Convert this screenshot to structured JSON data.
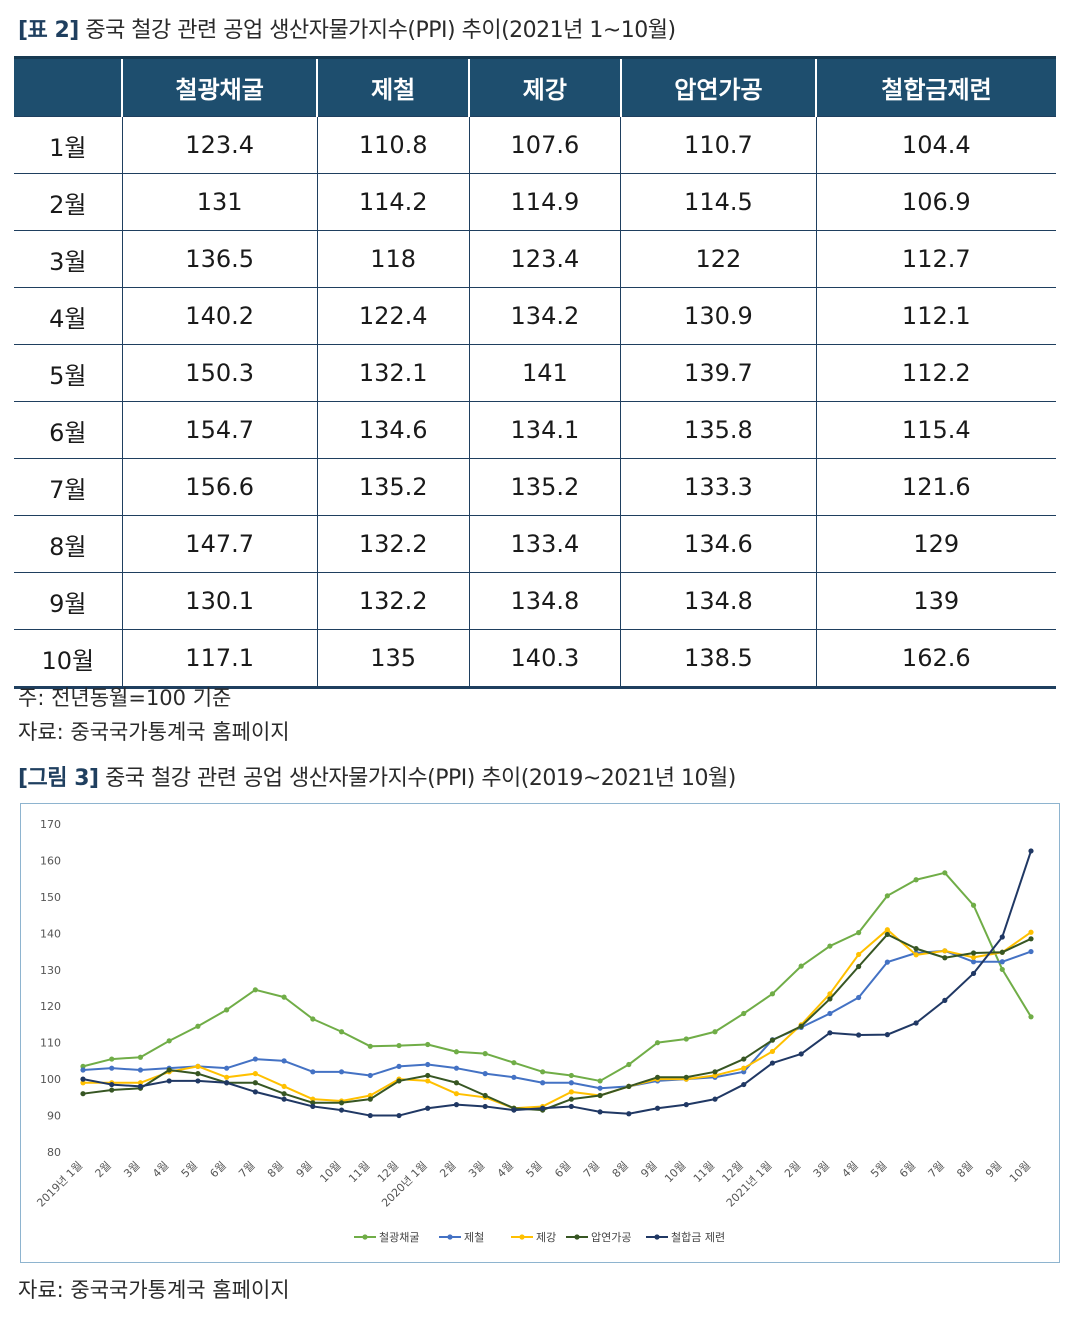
{
  "table": {
    "caption_tag": "[표 2]",
    "caption_text": "중국 철강 관련 공업 생산자물가지수(PPI) 추이(2021년 1~10월)",
    "headers": [
      "",
      "철광채굴",
      "제철",
      "제강",
      "압연가공",
      "철합금제련"
    ],
    "rows": [
      [
        "1월",
        "123.4",
        "110.8",
        "107.6",
        "110.7",
        "104.4"
      ],
      [
        "2월",
        "131",
        "114.2",
        "114.9",
        "114.5",
        "106.9"
      ],
      [
        "3월",
        "136.5",
        "118",
        "123.4",
        "122",
        "112.7"
      ],
      [
        "4월",
        "140.2",
        "122.4",
        "134.2",
        "130.9",
        "112.1"
      ],
      [
        "5월",
        "150.3",
        "132.1",
        "141",
        "139.7",
        "112.2"
      ],
      [
        "6월",
        "154.7",
        "134.6",
        "134.1",
        "135.8",
        "115.4"
      ],
      [
        "7월",
        "156.6",
        "135.2",
        "135.2",
        "133.3",
        "121.6"
      ],
      [
        "8월",
        "147.7",
        "132.2",
        "133.4",
        "134.6",
        "129"
      ],
      [
        "9월",
        "130.1",
        "132.2",
        "134.8",
        "134.8",
        "139"
      ],
      [
        "10월",
        "117.1",
        "135",
        "140.3",
        "138.5",
        "162.6"
      ]
    ],
    "note": "주: 전년동월=100 기준",
    "source": "자료: 중국국가통계국 홈페이지"
  },
  "figure": {
    "caption_tag": "[그림 3]",
    "caption_text": "중국 철강 관련 공업 생산자물가지수(PPI) 추이(2019~2021년 10월)",
    "source": "자료: 중국국가통계국 홈페이지"
  },
  "chart_data": {
    "type": "line",
    "title": "",
    "xlabel": "",
    "ylabel": "",
    "ylim": [
      80,
      170
    ],
    "yticks": [
      80,
      90,
      100,
      110,
      120,
      130,
      140,
      150,
      160,
      170
    ],
    "grid": false,
    "legend_position": "bottom",
    "categories": [
      "2019년 1월",
      "2월",
      "3월",
      "4월",
      "5월",
      "6월",
      "7월",
      "8월",
      "9월",
      "10월",
      "11월",
      "12월",
      "2020년 1월",
      "2월",
      "3월",
      "4월",
      "5월",
      "6월",
      "7월",
      "8월",
      "9월",
      "10월",
      "11월",
      "12월",
      "2021년 1월",
      "2월",
      "3월",
      "4월",
      "5월",
      "6월",
      "7월",
      "8월",
      "9월",
      "10월"
    ],
    "series": [
      {
        "name": "철광채굴",
        "color": "#70ad47",
        "values": [
          103.5,
          105.5,
          106,
          110.5,
          114.5,
          119,
          124.5,
          122.5,
          116.5,
          113,
          109,
          109.2,
          109.5,
          107.5,
          107,
          104.5,
          102,
          101,
          99.5,
          104,
          110,
          111,
          113,
          118,
          123.4,
          131,
          136.5,
          140.2,
          150.3,
          154.7,
          156.6,
          147.7,
          130.1,
          117.1
        ]
      },
      {
        "name": "제철",
        "color": "#4472c4",
        "values": [
          102.5,
          103,
          102.5,
          103,
          103.5,
          103,
          105.5,
          105,
          102,
          102,
          101,
          103.5,
          104,
          103,
          101.5,
          100.5,
          99,
          99,
          97.5,
          98,
          99.5,
          100,
          100.5,
          102,
          110.8,
          114.2,
          118,
          122.4,
          132.1,
          134.6,
          135.2,
          132.2,
          132.2,
          135
        ]
      },
      {
        "name": "제강",
        "color": "#ffc000",
        "values": [
          99,
          99,
          99,
          102,
          103.5,
          100.5,
          101.5,
          98,
          94.5,
          94,
          95.5,
          100,
          99.5,
          96,
          95,
          92,
          92.5,
          96.5,
          95.5,
          98,
          100,
          100,
          101,
          103,
          107.6,
          114.9,
          123.4,
          134.2,
          141,
          134.1,
          135.2,
          133.4,
          134.8,
          140.3
        ]
      },
      {
        "name": "압연가공",
        "color": "#375623",
        "values": [
          96,
          97,
          97.5,
          102.5,
          101.5,
          99,
          99,
          96,
          93.5,
          93.5,
          94.5,
          99.5,
          101,
          99,
          95.5,
          92,
          91.5,
          94.5,
          95.5,
          98,
          100.5,
          100.5,
          102,
          105.5,
          110.7,
          114.5,
          122,
          130.9,
          139.7,
          135.8,
          133.3,
          134.6,
          134.8,
          138.5
        ]
      },
      {
        "name": "철합금 제련",
        "color": "#203864",
        "values": [
          100,
          98.5,
          98,
          99.5,
          99.5,
          99,
          96.5,
          94.5,
          92.5,
          91.5,
          90,
          90,
          92,
          93,
          92.5,
          91.5,
          92,
          92.5,
          91,
          90.5,
          92,
          93,
          94.5,
          98.5,
          104.4,
          106.9,
          112.7,
          112.1,
          112.2,
          115.4,
          121.6,
          129,
          139,
          162.6
        ]
      }
    ]
  }
}
